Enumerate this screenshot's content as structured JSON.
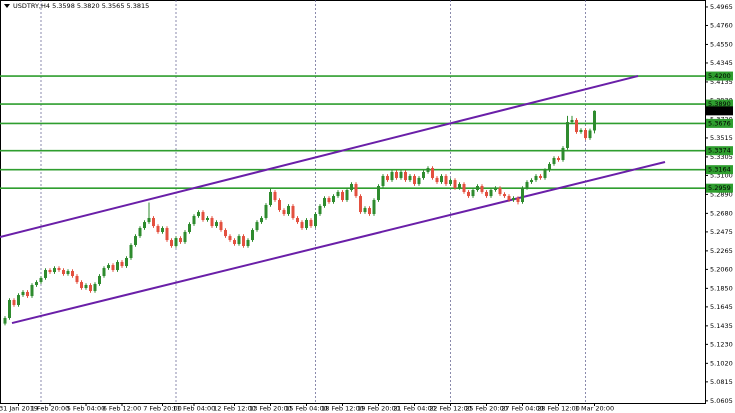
{
  "chart_data": {
    "type": "candlestick",
    "title": "USDTRY,H4 5.3598 5.3820 5.3565 5.3815",
    "up_color": "#2e8b2e",
    "down_color": "#e3503f",
    "level_color": "#2f9e2f",
    "channel_color": "#6a1fa8",
    "ylim": [
      5.0581,
      5.5042
    ],
    "yticks": [
      5.4965,
      {
        "value": 5.476,
        "label": "5.4760"
      },
      {
        "value": 5.455,
        "label": "5.4550"
      },
      5.4345,
      5.4135,
      {
        "value": 5.393,
        "label": "5.3930"
      },
      {
        "value": 5.372,
        "label": "5.3720"
      },
      5.3515,
      5.3305,
      {
        "value": 5.31,
        "label": "5.3100"
      },
      {
        "value": 5.289,
        "label": "5.2890"
      },
      {
        "value": 5.268,
        "label": "5.2680"
      },
      5.2475,
      5.2265,
      {
        "value": 5.206,
        "label": "5.2060"
      },
      {
        "value": 5.185,
        "label": "5.1850"
      },
      5.1645,
      5.1435,
      {
        "value": 5.123,
        "label": "5.1230"
      },
      {
        "value": 5.102,
        "label": "5.1020"
      },
      5.0815,
      5.0605
    ],
    "levels": [
      {
        "value": 5.42,
        "label": "5.4200"
      },
      {
        "value": 5.389,
        "label": "5.3890"
      },
      5.3676,
      5.3374,
      5.3164,
      5.2959
    ],
    "price_marker": 5.3815,
    "channels": [
      {
        "start": 5.2418,
        "end": 5.4201
      },
      {
        "start": 5.1466,
        "end": 5.3249
      }
    ],
    "separators": [
      8,
      38,
      69,
      99,
      129
    ],
    "categories": [
      null,
      null,
      null,
      "31 Jan 2019",
      null,
      null,
      null,
      null,
      null,
      null,
      "1 Feb 20:00",
      null,
      null,
      null,
      null,
      null,
      null,
      null,
      "5 Feb 04:00",
      null,
      null,
      null,
      null,
      null,
      null,
      null,
      "6 Feb 12:00",
      null,
      null,
      null,
      null,
      null,
      null,
      null,
      null,
      "7 Feb 20:00",
      null,
      null,
      null,
      null,
      null,
      null,
      "11 Feb 04:00",
      null,
      null,
      null,
      null,
      null,
      null,
      null,
      null,
      "12 Feb 12:00",
      null,
      null,
      null,
      null,
      null,
      null,
      null,
      "13 Feb 20:00",
      null,
      null,
      null,
      null,
      null,
      null,
      null,
      "15 Feb 04:00",
      null,
      null,
      null,
      null,
      null,
      null,
      null,
      "18 Feb 12:00",
      null,
      null,
      null,
      null,
      null,
      null,
      null,
      "19 Feb 20:00",
      null,
      null,
      null,
      null,
      null,
      null,
      null,
      "21 Feb 04:00",
      null,
      null,
      null,
      null,
      null,
      null,
      null,
      "22 Feb 12:00",
      null,
      null,
      null,
      null,
      null,
      null,
      null,
      "25 Feb 20:00",
      null,
      null,
      null,
      null,
      null,
      null,
      null,
      "27 Feb 04:00",
      null,
      null,
      null,
      null,
      null,
      null,
      null,
      "28 Feb 12:00",
      null,
      null,
      null,
      null,
      null,
      null,
      null,
      "1 Mar 20:00"
    ],
    "candles": [
      [
        5.146,
        5.1542,
        5.144,
        5.1522
      ],
      [
        5.1522,
        5.1741,
        5.1502,
        5.1721
      ],
      [
        5.1721,
        5.1741,
        5.1646,
        5.1666
      ],
      [
        5.1666,
        5.1796,
        5.1646,
        5.1776
      ],
      [
        5.1776,
        5.183,
        5.1756,
        5.181
      ],
      [
        5.181,
        5.183,
        5.1745,
        5.1765
      ],
      [
        5.1765,
        5.1907,
        5.1745,
        5.1887
      ],
      [
        5.1887,
        5.194,
        5.1867,
        5.192
      ],
      [
        5.192,
        5.1985,
        5.19,
        5.1965
      ],
      [
        5.1965,
        5.2073,
        5.1945,
        5.2053
      ],
      [
        5.2053,
        5.2073,
        5.2011,
        5.2031
      ],
      [
        5.2031,
        5.2095,
        5.2011,
        5.2075
      ],
      [
        5.2075,
        5.2095,
        5.2033,
        5.2053
      ],
      [
        5.2053,
        5.2073,
        5.1989,
        5.2009
      ],
      [
        5.2009,
        5.2062,
        5.1989,
        5.2042
      ],
      [
        5.2042,
        5.2062,
        5.1967,
        5.1987
      ],
      [
        5.1987,
        5.2007,
        5.19,
        5.192
      ],
      [
        5.192,
        5.194,
        5.1834,
        5.1854
      ],
      [
        5.1854,
        5.1907,
        5.1834,
        5.1887
      ],
      [
        5.1887,
        5.1907,
        5.1801,
        5.1821
      ],
      [
        5.1821,
        5.1918,
        5.1801,
        5.1898
      ],
      [
        5.1898,
        5.2007,
        5.1878,
        5.1987
      ],
      [
        5.1987,
        5.2095,
        5.1967,
        5.2075
      ],
      [
        5.2075,
        5.2128,
        5.2055,
        5.2108
      ],
      [
        5.2108,
        5.2128,
        5.2033,
        5.2053
      ],
      [
        5.2053,
        5.2162,
        5.2033,
        5.2142
      ],
      [
        5.2142,
        5.2162,
        5.2077,
        5.2097
      ],
      [
        5.2097,
        5.2206,
        5.2077,
        5.2186
      ],
      [
        5.2186,
        5.235,
        5.2166,
        5.233
      ],
      [
        5.233,
        5.2449,
        5.231,
        5.2429
      ],
      [
        5.2429,
        5.2538,
        5.2409,
        5.2518
      ],
      [
        5.2518,
        5.2604,
        5.2498,
        5.2584
      ],
      [
        5.2584,
        5.28,
        5.2564,
        5.2629
      ],
      [
        5.2629,
        5.2649,
        5.252,
        5.254
      ],
      [
        5.254,
        5.256,
        5.2454,
        5.2474
      ],
      [
        5.2474,
        5.2538,
        5.2454,
        5.2518
      ],
      [
        5.2518,
        5.2538,
        5.2365,
        5.2385
      ],
      [
        5.2385,
        5.2405,
        5.2299,
        5.2319
      ],
      [
        5.2319,
        5.2427,
        5.2299,
        5.2407
      ],
      [
        5.2407,
        5.2427,
        5.2343,
        5.2363
      ],
      [
        5.2363,
        5.2494,
        5.2343,
        5.2474
      ],
      [
        5.2474,
        5.2582,
        5.2454,
        5.2562
      ],
      [
        5.2562,
        5.2671,
        5.2542,
        5.2651
      ],
      [
        5.2651,
        5.2715,
        5.2631,
        5.2695
      ],
      [
        5.2695,
        5.2715,
        5.2587,
        5.2607
      ],
      [
        5.2607,
        5.2649,
        5.2587,
        5.2629
      ],
      [
        5.2629,
        5.2649,
        5.252,
        5.254
      ],
      [
        5.254,
        5.2604,
        5.252,
        5.2584
      ],
      [
        5.2584,
        5.2604,
        5.2476,
        5.2496
      ],
      [
        5.2496,
        5.2516,
        5.2409,
        5.2429
      ],
      [
        5.2429,
        5.2449,
        5.2365,
        5.2385
      ],
      [
        5.2385,
        5.2405,
        5.2321,
        5.2341
      ],
      [
        5.2341,
        5.2449,
        5.2321,
        5.2429
      ],
      [
        5.2429,
        5.2449,
        5.2299,
        5.2319
      ],
      [
        5.2319,
        5.2405,
        5.2299,
        5.2385
      ],
      [
        5.2385,
        5.2516,
        5.2365,
        5.2496
      ],
      [
        5.2496,
        5.2604,
        5.2476,
        5.2584
      ],
      [
        5.2584,
        5.2649,
        5.2564,
        5.2629
      ],
      [
        5.2629,
        5.2793,
        5.2609,
        5.2773
      ],
      [
        5.2773,
        5.296,
        5.2753,
        5.2917
      ],
      [
        5.2917,
        5.2937,
        5.2808,
        5.2828
      ],
      [
        5.2828,
        5.2848,
        5.2697,
        5.2717
      ],
      [
        5.2717,
        5.2737,
        5.2653,
        5.2673
      ],
      [
        5.2673,
        5.2782,
        5.2653,
        5.2762
      ],
      [
        5.2762,
        5.2782,
        5.2609,
        5.2629
      ],
      [
        5.2629,
        5.2649,
        5.2564,
        5.2584
      ],
      [
        5.2584,
        5.2604,
        5.2498,
        5.2518
      ],
      [
        5.2518,
        5.2627,
        5.2498,
        5.2607
      ],
      [
        5.2607,
        5.2627,
        5.252,
        5.254
      ],
      [
        5.254,
        5.2693,
        5.252,
        5.2673
      ],
      [
        5.2673,
        5.2782,
        5.2653,
        5.2762
      ],
      [
        5.2762,
        5.287,
        5.2742,
        5.285
      ],
      [
        5.285,
        5.287,
        5.2786,
        5.2806
      ],
      [
        5.2806,
        5.2892,
        5.2786,
        5.2872
      ],
      [
        5.2872,
        5.2937,
        5.2852,
        5.2917
      ],
      [
        5.2917,
        5.2937,
        5.2808,
        5.2828
      ],
      [
        5.2828,
        5.2959,
        5.2808,
        5.2939
      ],
      [
        5.2939,
        5.3025,
        5.2919,
        5.3005
      ],
      [
        5.3005,
        5.3025,
        5.2852,
        5.2872
      ],
      [
        5.2872,
        5.2892,
        5.2675,
        5.2695
      ],
      [
        5.2695,
        5.2759,
        5.2675,
        5.2739
      ],
      [
        5.2739,
        5.2759,
        5.2653,
        5.2673
      ],
      [
        5.2673,
        5.2848,
        5.2653,
        5.2828
      ],
      [
        5.2828,
        5.3003,
        5.2808,
        5.2983
      ],
      [
        5.2983,
        5.3114,
        5.2963,
        5.3094
      ],
      [
        5.3094,
        5.3114,
        5.3029,
        5.3049
      ],
      [
        5.3049,
        5.3158,
        5.3029,
        5.3138
      ],
      [
        5.3138,
        5.3158,
        5.3052,
        5.3072
      ],
      [
        5.3072,
        5.3158,
        5.3052,
        5.3138
      ],
      [
        5.3138,
        5.3158,
        5.3029,
        5.3049
      ],
      [
        5.3049,
        5.3114,
        5.3029,
        5.3094
      ],
      [
        5.3094,
        5.3114,
        5.2985,
        5.3005
      ],
      [
        5.3005,
        5.3092,
        5.2985,
        5.3072
      ],
      [
        5.3072,
        5.3158,
        5.3052,
        5.3138
      ],
      [
        5.3138,
        5.3202,
        5.3118,
        5.3182
      ],
      [
        5.3182,
        5.3202,
        5.3052,
        5.3072
      ],
      [
        5.3072,
        5.3092,
        5.3007,
        5.3027
      ],
      [
        5.3027,
        5.3114,
        5.3007,
        5.3094
      ],
      [
        5.3094,
        5.3114,
        5.2985,
        5.3005
      ],
      [
        5.3005,
        5.3069,
        5.2985,
        5.3049
      ],
      [
        5.3049,
        5.3069,
        5.2941,
        5.2961
      ],
      [
        5.2961,
        5.3025,
        5.2941,
        5.3005
      ],
      [
        5.3005,
        5.3025,
        5.2897,
        5.2917
      ],
      [
        5.2917,
        5.2937,
        5.2852,
        5.2872
      ],
      [
        5.2872,
        5.2959,
        5.2852,
        5.2939
      ],
      [
        5.2939,
        5.3003,
        5.2919,
        5.2983
      ],
      [
        5.2983,
        5.3003,
        5.2897,
        5.2917
      ],
      [
        5.2917,
        5.2937,
        5.2852,
        5.2872
      ],
      [
        5.2872,
        5.2959,
        5.2852,
        5.2939
      ],
      [
        5.2939,
        5.2981,
        5.2919,
        5.2961
      ],
      [
        5.2961,
        5.2981,
        5.2874,
        5.2894
      ],
      [
        5.2894,
        5.2914,
        5.2852,
        5.2872
      ],
      [
        5.2872,
        5.2892,
        5.2808,
        5.2828
      ],
      [
        5.2828,
        5.287,
        5.2808,
        5.285
      ],
      [
        5.285,
        5.287,
        5.278,
        5.2806
      ],
      [
        5.2806,
        5.2981,
        5.2786,
        5.2961
      ],
      [
        5.2961,
        5.3047,
        5.2941,
        5.3027
      ],
      [
        5.3027,
        5.3069,
        5.3007,
        5.3049
      ],
      [
        5.3049,
        5.3114,
        5.3029,
        5.3094
      ],
      [
        5.3094,
        5.3114,
        5.3052,
        5.3072
      ],
      [
        5.3072,
        5.318,
        5.3052,
        5.316
      ],
      [
        5.316,
        5.3247,
        5.314,
        5.3227
      ],
      [
        5.3227,
        5.3313,
        5.3207,
        5.3293
      ],
      [
        5.3293,
        5.3313,
        5.3251,
        5.3271
      ],
      [
        5.3271,
        5.3424,
        5.3251,
        5.3404
      ],
      [
        5.3404,
        5.376,
        5.3384,
        5.3691
      ],
      [
        5.3691,
        5.376,
        5.3671,
        5.3714
      ],
      [
        5.3714,
        5.3734,
        5.3561,
        5.3581
      ],
      [
        5.3581,
        5.3623,
        5.3561,
        5.3603
      ],
      [
        5.3603,
        5.3623,
        5.3494,
        5.3514
      ],
      [
        5.3514,
        5.3618,
        5.3494,
        5.3598
      ],
      [
        5.3598,
        5.382,
        5.3565,
        5.3815
      ]
    ]
  }
}
